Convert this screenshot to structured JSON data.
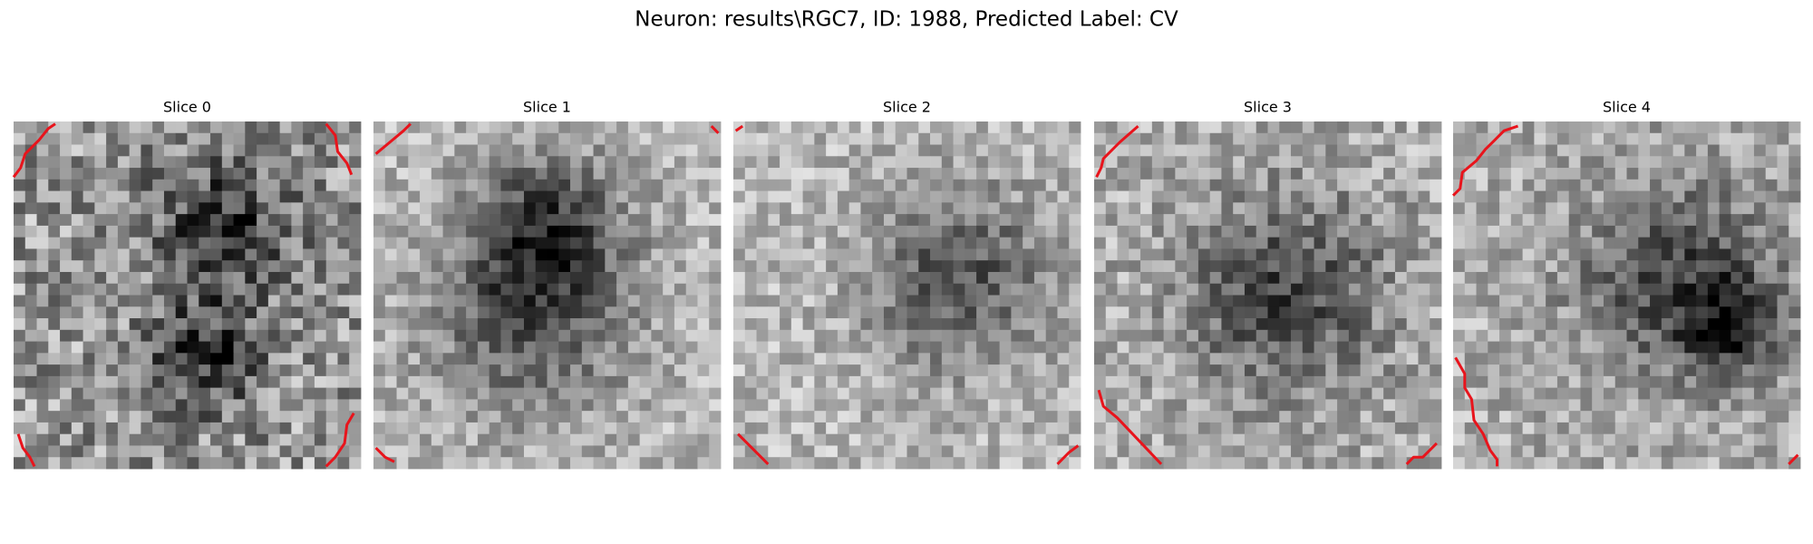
{
  "title": "Neuron: results\\RGC7, ID: 1988, Predicted Label: CV",
  "panels": [
    {
      "title": "Slice 0"
    },
    {
      "title": "Slice 1"
    },
    {
      "title": "Slice 2"
    },
    {
      "title": "Slice 3"
    },
    {
      "title": "Slice 4"
    }
  ]
}
